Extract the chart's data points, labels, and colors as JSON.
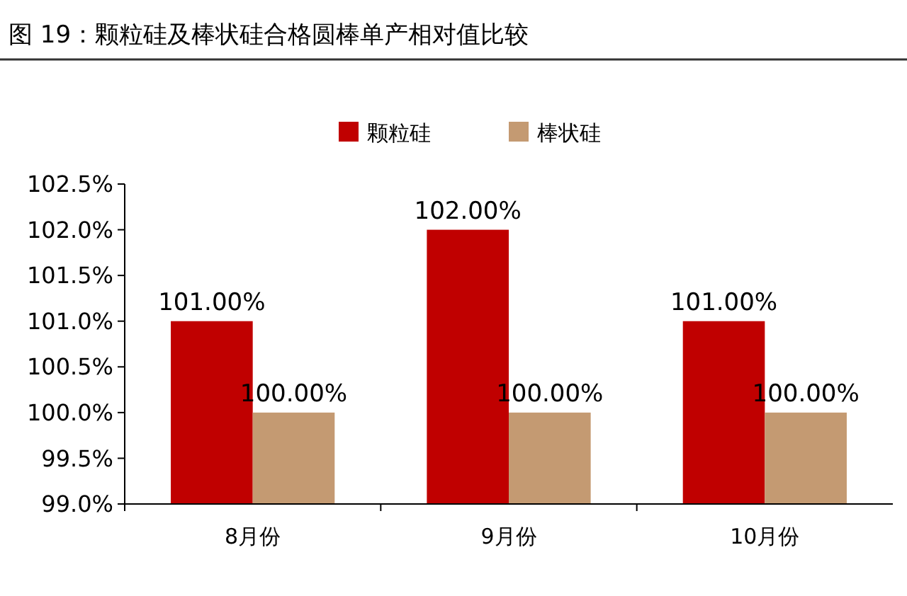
{
  "chart_data": {
    "type": "bar",
    "title": "图 19：颗粒硅及棒状硅合格圆棒单产相对值比较",
    "categories": [
      "8月份",
      "9月份",
      "10月份"
    ],
    "series": [
      {
        "name": "颗粒硅",
        "color": "#c00000",
        "values": [
          101,
          102,
          101
        ],
        "value_labels": [
          "101.00%",
          "102.00%",
          "101.00%"
        ]
      },
      {
        "name": "棒状硅",
        "color": "#c49a72",
        "values": [
          100,
          100,
          100
        ],
        "value_labels": [
          "100.00%",
          "100.00%",
          "100.00%"
        ]
      }
    ],
    "ylim": [
      99,
      102.5
    ],
    "yticks": [
      {
        "value": 99,
        "label": "99.0%"
      },
      {
        "value": 99.5,
        "label": "99.5%"
      },
      {
        "value": 100,
        "label": "100.0%"
      },
      {
        "value": 100.5,
        "label": "100.5%"
      },
      {
        "value": 101,
        "label": "101.0%"
      },
      {
        "value": 101.5,
        "label": "101.5%"
      },
      {
        "value": 102,
        "label": "102.0%"
      },
      {
        "value": 102.5,
        "label": "102.5%"
      }
    ],
    "grid": false,
    "legend": "top"
  }
}
